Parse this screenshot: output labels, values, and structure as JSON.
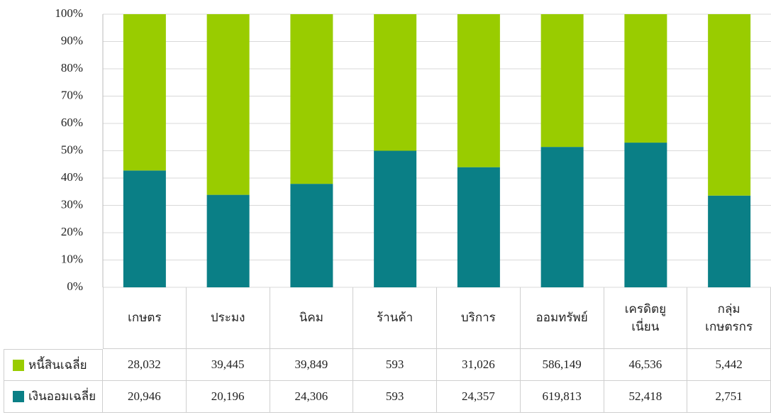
{
  "chart_data": {
    "type": "stacked_percent_bar",
    "categories": [
      "เกษตร",
      "ประมง",
      "นิคม",
      "ร้านค้า",
      "บริการ",
      "ออมทรัพย์",
      "เครดิตยู\nเนี่ยน",
      "กลุ่ม\nเกษตรกร"
    ],
    "series": [
      {
        "name": "หนี้สินเฉลี่ย",
        "color": "#99cc00",
        "values": [
          28032,
          39445,
          39849,
          593,
          31026,
          586149,
          46536,
          5442
        ],
        "value_labels": [
          "28,032",
          "39,445",
          "39,849",
          "593",
          "31,026",
          "586,149",
          "46,536",
          "5,442"
        ]
      },
      {
        "name": "เงินออมเฉลี่ย",
        "color": "#0a7f86",
        "values": [
          20946,
          20196,
          24306,
          593,
          24357,
          619813,
          52418,
          2751
        ],
        "value_labels": [
          "20,946",
          "20,196",
          "24,306",
          "593",
          "24,357",
          "619,813",
          "52,418",
          "2,751"
        ]
      }
    ],
    "ylim": [
      0,
      100
    ],
    "yticks": [
      {
        "value": 0,
        "label": "0%"
      },
      {
        "value": 10,
        "label": "10%"
      },
      {
        "value": 20,
        "label": "20%"
      },
      {
        "value": 30,
        "label": "30%"
      },
      {
        "value": 40,
        "label": "40%"
      },
      {
        "value": 50,
        "label": "50%"
      },
      {
        "value": 60,
        "label": "60%"
      },
      {
        "value": 70,
        "label": "70%"
      },
      {
        "value": 80,
        "label": "80%"
      },
      {
        "value": 90,
        "label": "90%"
      },
      {
        "value": 100,
        "label": "100%"
      }
    ],
    "grid": true
  }
}
